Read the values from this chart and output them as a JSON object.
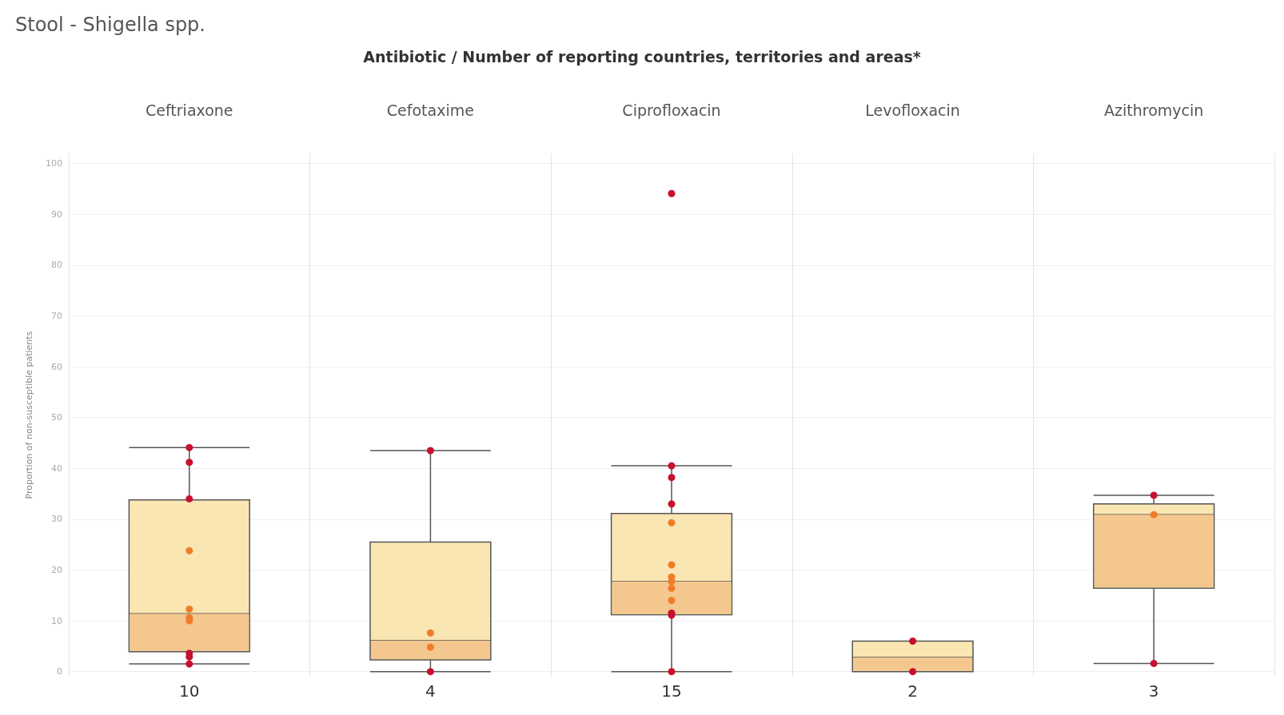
{
  "chart_data": {
    "type": "box",
    "title": "Stool - Shigella spp.",
    "xlabel": "Antibiotic / Number of reporting countries, territories and areas*",
    "ylabel": "Proportion of non-susceptible patients",
    "categories": [
      "Ceftriaxone",
      "Cefotaxime",
      "Ciprofloxacin",
      "Levofloxacin",
      "Azithromycin"
    ],
    "ylim": [
      -1,
      102
    ],
    "yticks": [
      0,
      10,
      20,
      30,
      40,
      50,
      60,
      70,
      80,
      90,
      100
    ],
    "grid": true,
    "annotations": [
      "10",
      "4",
      "15",
      "2",
      "3"
    ],
    "series": [
      {
        "colors": [
          "#f3c78e",
          "#f3c78e",
          "#f3c78e",
          "#f3c78e",
          "#f3c78e"
        ],
        "color": "#f9e6b3",
        "boxes": [
          {
            "low": 1.5,
            "q1": 3.9,
            "median": 11.4,
            "q3": 33.8,
            "high": 44.1
          },
          {
            "low": 0,
            "q1": 2.3,
            "median": 6.1,
            "q3": 25.5,
            "high": 43.5
          },
          {
            "low": 0,
            "q1": 11.2,
            "median": 17.7,
            "q3": 31.1,
            "high": 40.5
          },
          {
            "low": 0,
            "q1": 0,
            "median": 2.8,
            "q3": 6.0,
            "high": 6.0
          },
          {
            "low": 1.6,
            "q1": 16.4,
            "median": 30.9,
            "q3": 33.0,
            "high": 34.7
          }
        ]
      },
      {
        "type": "scatter",
        "color": "#c8102e",
        "marker": "circle",
        "x": [
          "Ceftriaxone",
          "Ceftriaxone",
          "Ceftriaxone",
          "Ceftriaxone",
          "Ceftriaxone",
          "Ceftriaxone",
          "Cefotaxime",
          "Cefotaxime",
          "Ciprofloxacin",
          "Ciprofloxacin",
          "Ciprofloxacin",
          "Ciprofloxacin",
          "Ciprofloxacin",
          "Ciprofloxacin",
          "Ciprofloxacin",
          "Levofloxacin",
          "Levofloxacin",
          "Azithromycin",
          "Azithromycin"
        ],
        "values": [
          44.1,
          41.2,
          34.0,
          3.6,
          2.9,
          1.5,
          43.5,
          0,
          94.1,
          40.5,
          38.2,
          33.0,
          11.5,
          11.1,
          0,
          6.0,
          0,
          34.7,
          1.6
        ]
      },
      {
        "type": "scatter",
        "color": "#f07c2a",
        "marker": "circle",
        "x": [
          "Ceftriaxone",
          "Ceftriaxone",
          "Ceftriaxone",
          "Ceftriaxone",
          "Cefotaxime",
          "Cefotaxime",
          "Ciprofloxacin",
          "Ciprofloxacin",
          "Ciprofloxacin",
          "Ciprofloxacin",
          "Ciprofloxacin",
          "Ciprofloxacin",
          "Ciprofloxacin",
          "Azithromycin"
        ],
        "values": [
          23.8,
          12.3,
          10.6,
          10.0,
          7.6,
          4.8,
          29.3,
          21.0,
          18.6,
          17.7,
          16.4,
          14.0,
          null,
          30.9
        ]
      }
    ]
  }
}
